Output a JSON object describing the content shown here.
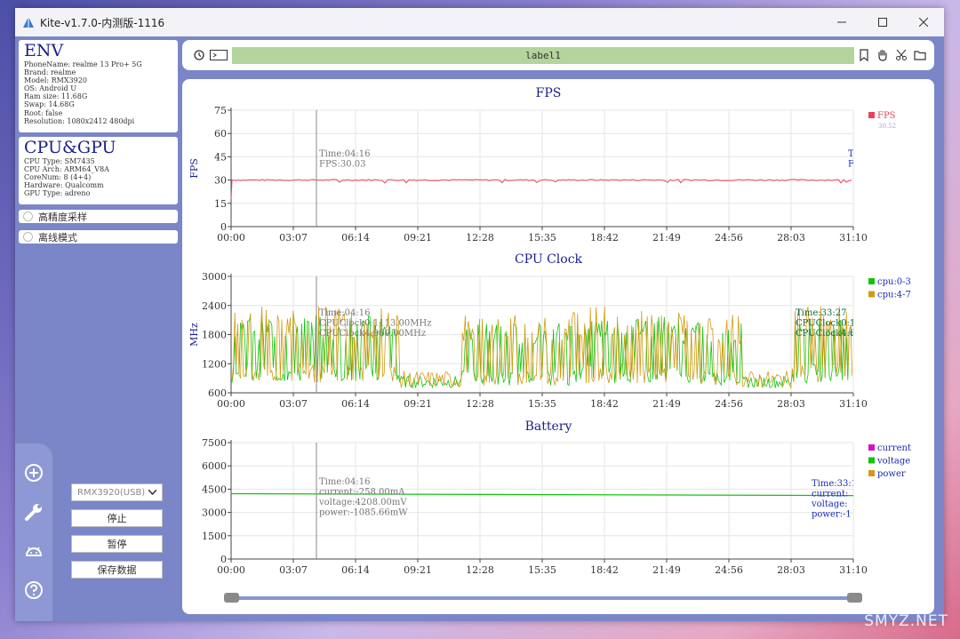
{
  "window": {
    "title": "Kite-v1.7.0-内测版-1116"
  },
  "env": {
    "title": "ENV",
    "lines": [
      "PhoneName: realme 13 Pro+ 5G",
      "Brand: realme",
      "Model: RMX3920",
      "OS: Android U",
      "Ram size: 11.68G",
      "Swap: 14.68G",
      "Root: false",
      "Resolution: 1080x2412 480dpi"
    ]
  },
  "cpugpu": {
    "title": "CPU&GPU",
    "lines": [
      "CPU Type: SM7435",
      "CPU Arch: ARM64_V8A",
      "CoreNum: 8 (4+4)",
      "Hardware: Qualcomm",
      "GPU Type: adreno"
    ]
  },
  "options": {
    "high_precision": "高精度采样",
    "offline": "离线模式"
  },
  "controls": {
    "device": "RMX3920(USB)",
    "stop": "停止",
    "pause": "暂停",
    "save": "保存数据"
  },
  "toolbar": {
    "label": "label1"
  },
  "watermark": "SMYZ.NET",
  "colors": {
    "fps": "#e8435a",
    "cpu0": "#11c40c",
    "cpu4": "#d29a12",
    "current": "#d511c7",
    "voltage": "#11c40c",
    "power": "#d29a12",
    "title": "#1a1f8a"
  },
  "chart_data": [
    {
      "type": "line",
      "title": "FPS",
      "ylabel": "FPS",
      "ylim": [
        0,
        75
      ],
      "yticks": [
        "0",
        "15",
        "30",
        "45",
        "60",
        "75"
      ],
      "xticks": [
        "00:00",
        "03:07",
        "06:14",
        "09:21",
        "12:28",
        "15:35",
        "18:42",
        "21:49",
        "24:56",
        "28:03",
        "31:10"
      ],
      "series": [
        {
          "name": "FPS",
          "value_label": "30.52",
          "base": 30
        }
      ],
      "tooltip": [
        "Time:04:16",
        "FPS:30.03"
      ],
      "tooltip_right": [
        "T",
        "F"
      ]
    },
    {
      "type": "line",
      "title": "CPU Clock",
      "ylabel": "MHz",
      "ylim": [
        600,
        3000
      ],
      "yticks": [
        "600",
        "1200",
        "1800",
        "2400",
        "3000"
      ],
      "xticks": [
        "00:00",
        "03:07",
        "06:14",
        "09:21",
        "12:28",
        "15:35",
        "18:42",
        "21:49",
        "24:56",
        "28:03",
        "31:10"
      ],
      "series": [
        {
          "name": "cpu:0-3"
        },
        {
          "name": "cpu:4-7"
        }
      ],
      "tooltip": [
        "Time:04:16",
        "CPUClock0:1113.00MHz",
        "CPUClock4:960.00MHz"
      ],
      "tooltip_right": [
        "Time:33:27",
        "CPUClock0:1",
        "CPUClock4:6"
      ]
    },
    {
      "type": "line",
      "title": "Battery",
      "ylim": [
        0,
        7500
      ],
      "yticks": [
        "0",
        "1500",
        "3000",
        "4500",
        "6000",
        "7500"
      ],
      "xticks": [
        "00:00",
        "03:07",
        "06:14",
        "09:21",
        "12:28",
        "15:35",
        "18:42",
        "21:49",
        "24:56",
        "28:03",
        "31:10"
      ],
      "series": [
        {
          "name": "current"
        },
        {
          "name": "voltage",
          "base": 4208
        },
        {
          "name": "power"
        }
      ],
      "tooltip": [
        "Time:04:16",
        "current:-258.00mA",
        "voltage:4208.00mV",
        "power:-1085.66mW"
      ],
      "tooltip_right": [
        "Time:33:1",
        "current:",
        "voltage:",
        "power:-1"
      ]
    }
  ]
}
